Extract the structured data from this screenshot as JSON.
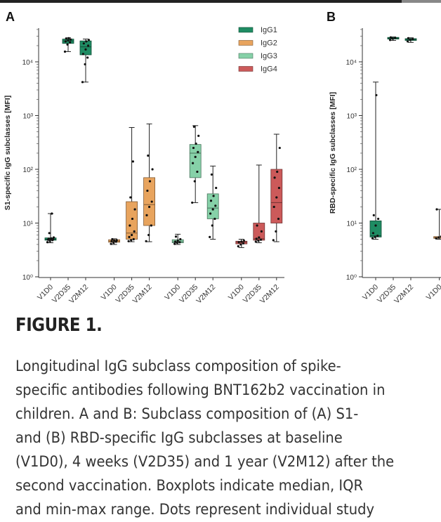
{
  "figure": {
    "title": "FIGURE 1.",
    "caption_lines": [
      "Longitudinal IgG subclass composition of spike-",
      "specific antibodies following BNT162b2 vaccination in",
      "children. A and B: Subclass composition of (A) S1-",
      "and (B) RBD-specific IgG subclasses at baseline",
      "(V1D0), 4 weeks (V2D35) and 1 year (V2M12) after the",
      "second vaccination. Boxplots indicate median, IQR",
      "and min-max range. Dots represent individual study"
    ]
  },
  "colors": {
    "IgG1": "#1f8c63",
    "IgG2": "#e8a45e",
    "IgG3": "#86d1a8",
    "IgG4": "#cc5a5a"
  },
  "chart_data": [
    {
      "panel": "A",
      "type": "box",
      "ylabel": "S1-specific IgG subclasses [MFI]",
      "yscale": "log",
      "ylim": [
        1,
        50000
      ],
      "y_ticks": [
        "10⁰",
        "10¹",
        "10²",
        "10³",
        "10⁴"
      ],
      "legend": {
        "placement": "top-right",
        "entries": [
          "IgG1",
          "IgG2",
          "IgG3",
          "IgG4"
        ]
      },
      "categories": [
        "V1D0",
        "V2D35",
        "V2M12",
        "V1D0",
        "V2D35",
        "V2M12",
        "V1D0",
        "V2D35",
        "V2M12",
        "V1D0",
        "V2D35",
        "V2M12"
      ],
      "series": [
        {
          "name": "IgG1",
          "boxes": [
            {
              "min": 4.3,
              "q1": 4.8,
              "median": 5.0,
              "q3": 5.3,
              "max": 15,
              "points": [
                4.4,
                4.6,
                4.8,
                4.9,
                5.0,
                5.0,
                5.1,
                5.2,
                5.4,
                6.5,
                15
              ]
            },
            {
              "min": 15500,
              "q1": 22000,
              "median": 24500,
              "q3": 26500,
              "max": 28000,
              "points": [
                15500,
                21000,
                23000,
                24000,
                25000,
                26000,
                27000,
                27500
              ]
            },
            {
              "min": 4200,
              "q1": 13500,
              "median": 19000,
              "q3": 24500,
              "max": 26500,
              "points": [
                4200,
                9000,
                12000,
                14000,
                17000,
                20000,
                22000,
                24000,
                25500
              ]
            }
          ]
        },
        {
          "name": "IgG2",
          "boxes": [
            {
              "min": 4.0,
              "q1": 4.4,
              "median": 4.6,
              "q3": 4.9,
              "max": 5.1,
              "points": [
                4.1,
                4.3,
                4.5,
                4.6,
                4.7,
                4.8,
                5.0
              ]
            },
            {
              "min": 4.5,
              "q1": 5.0,
              "median": 6.5,
              "q3": 25,
              "max": 600,
              "points": [
                4.6,
                4.8,
                5.0,
                5.5,
                6.0,
                7.0,
                9.0,
                12,
                18,
                30,
                140
              ]
            },
            {
              "min": 4.5,
              "q1": 9.0,
              "median": 22,
              "q3": 70,
              "max": 700,
              "points": [
                4.6,
                6.0,
                9.0,
                14,
                20,
                25,
                40,
                60,
                100,
                180
              ]
            }
          ]
        },
        {
          "name": "IgG3",
          "boxes": [
            {
              "min": 4.0,
              "q1": 4.3,
              "median": 4.5,
              "q3": 4.9,
              "max": 6.2,
              "points": [
                4.1,
                4.3,
                4.4,
                4.5,
                4.7,
                5.0,
                5.6
              ]
            },
            {
              "min": 24,
              "q1": 70,
              "median": 200,
              "q3": 290,
              "max": 650,
              "points": [
                24,
                60,
                90,
                130,
                170,
                210,
                250,
                300,
                420,
                620
              ]
            },
            {
              "min": 5.0,
              "q1": 12,
              "median": 19,
              "q3": 35,
              "max": 115,
              "points": [
                5.5,
                9.0,
                12,
                15,
                18,
                21,
                26,
                32,
                45,
                80
              ]
            }
          ]
        },
        {
          "name": "IgG4",
          "boxes": [
            {
              "min": 3.5,
              "q1": 4.1,
              "median": 4.4,
              "q3": 4.6,
              "max": 5.0,
              "points": [
                3.7,
                4.0,
                4.2,
                4.4,
                4.5,
                4.7
              ]
            },
            {
              "min": 4.3,
              "q1": 4.8,
              "median": 5.1,
              "q3": 10,
              "max": 120,
              "points": [
                4.5,
                4.7,
                4.9,
                5.1,
                5.4,
                7.0,
                9.0
              ]
            },
            {
              "min": 4.5,
              "q1": 10,
              "median": 24,
              "q3": 100,
              "max": 450,
              "points": [
                4.8,
                7.0,
                12,
                20,
                30,
                45,
                70,
                90,
                250
              ]
            }
          ]
        }
      ]
    },
    {
      "panel": "B",
      "type": "box",
      "ylabel": "RBD-specific IgG subclasses [MFI]",
      "yscale": "log",
      "ylim": [
        1,
        50000
      ],
      "y_ticks": [
        "10⁰",
        "10¹",
        "10²",
        "10³",
        "10⁴"
      ],
      "categories": [
        "V1D0",
        "V2D35",
        "V2M12",
        "V1D0"
      ],
      "series": [
        {
          "name": "IgG1",
          "boxes": [
            {
              "min": 5.0,
              "q1": 5.5,
              "median": 5.8,
              "q3": 11,
              "max": 4200,
              "points": [
                5.2,
                5.5,
                5.8,
                6.5,
                9.0,
                12,
                14,
                2400
              ]
            },
            {
              "min": 25000,
              "q1": 26500,
              "median": 27500,
              "q3": 28500,
              "max": 29000,
              "points": [
                25500,
                27000,
                28000,
                28500
              ]
            },
            {
              "min": 23000,
              "q1": 25000,
              "median": 26000,
              "q3": 27000,
              "max": 28000,
              "points": [
                24000,
                25500,
                26500,
                27500
              ]
            }
          ]
        },
        {
          "name": "IgG2",
          "boxes": [
            {
              "min": 5.0,
              "q1": 5.2,
              "median": 5.4,
              "q3": 5.6,
              "max": 18,
              "points": [
                5.2,
                5.4,
                5.6,
                18
              ]
            }
          ]
        }
      ]
    }
  ]
}
